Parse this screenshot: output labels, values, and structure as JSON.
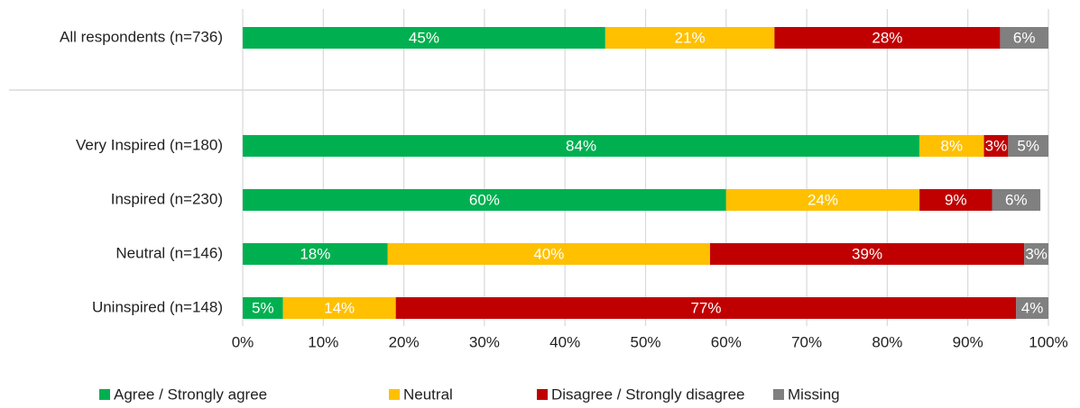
{
  "chart_data": {
    "type": "stacked-bar-horizontal",
    "categories": [
      "All respondents (n=736)",
      "Very Inspired (n=180)",
      "Inspired (n=230)",
      "Neutral (n=146)",
      "Uninspired (n=148)"
    ],
    "series": [
      {
        "name": "Agree / Strongly agree",
        "color": "#00b050",
        "values": [
          45,
          84,
          60,
          18,
          5
        ],
        "value_labels": [
          "45%",
          "84%",
          "60%",
          "18%",
          "5%"
        ]
      },
      {
        "name": "Neutral",
        "color": "#ffc000",
        "values": [
          21,
          8,
          24,
          40,
          14
        ],
        "value_labels": [
          "21%",
          "8%",
          "24%",
          "40%",
          "14%"
        ]
      },
      {
        "name": "Disagree / Strongly disagree",
        "color": "#c00000",
        "values": [
          28,
          3,
          9,
          39,
          77
        ],
        "value_labels": [
          "28%",
          "3%",
          "9%",
          "39%",
          "77%"
        ]
      },
      {
        "name": "Missing",
        "color": "#808080",
        "values": [
          6,
          5,
          6,
          3,
          4
        ],
        "value_labels": [
          "6%",
          "5%",
          "6%",
          "3%",
          "4%"
        ]
      }
    ],
    "xlim": [
      0,
      100
    ],
    "xticks": [
      {
        "value": 0,
        "label": "0%"
      },
      {
        "value": 10,
        "label": "10%"
      },
      {
        "value": 20,
        "label": "20%"
      },
      {
        "value": 30,
        "label": "30%"
      },
      {
        "value": 40,
        "label": "40%"
      },
      {
        "value": 50,
        "label": "50%"
      },
      {
        "value": 60,
        "label": "60%"
      },
      {
        "value": 70,
        "label": "70%"
      },
      {
        "value": 80,
        "label": "80%"
      },
      {
        "value": 90,
        "label": "90%"
      },
      {
        "value": 100,
        "label": "100%"
      }
    ],
    "grid": true,
    "legend": "bottom"
  }
}
